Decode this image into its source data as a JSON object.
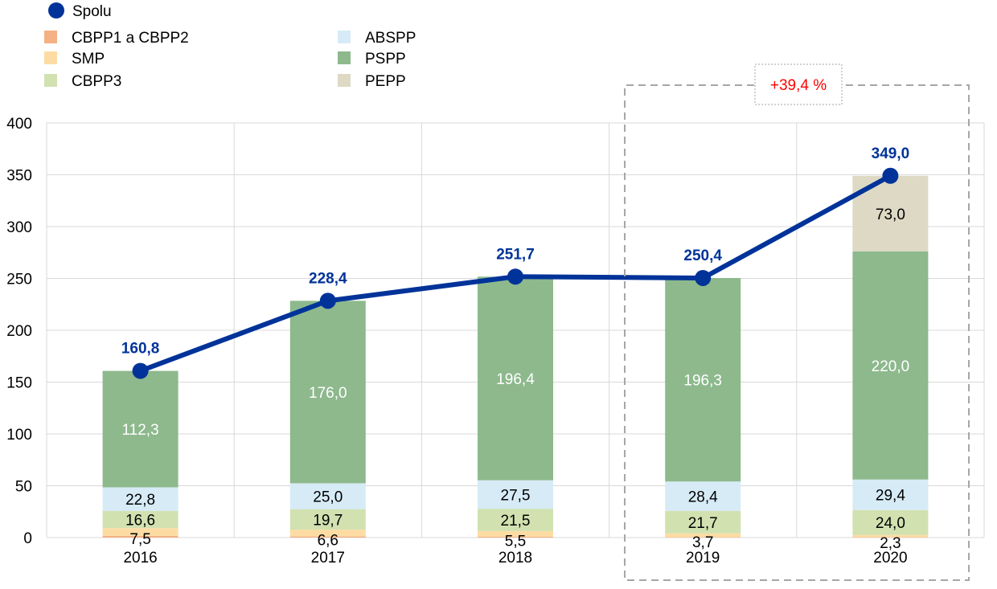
{
  "chart_data": {
    "type": "bar",
    "stacked": true,
    "categories": [
      "2016",
      "2017",
      "2018",
      "2019",
      "2020"
    ],
    "ylim": [
      0,
      400
    ],
    "yticks": [
      0,
      50,
      100,
      150,
      200,
      250,
      300,
      350,
      400
    ],
    "grid": true,
    "legend_placement": "top-left",
    "series": [
      {
        "name": "CBPP1 a CBPP2",
        "color": "#f4b183",
        "values": [
          1.6,
          1.1,
          0.8,
          0.3,
          0.3
        ],
        "labels": [
          "",
          "",
          "",
          "",
          ""
        ]
      },
      {
        "name": "SMP",
        "color": "#fddca4",
        "values": [
          7.5,
          6.6,
          5.5,
          3.7,
          2.3
        ],
        "labels": [
          "7,5",
          "6,6",
          "5,5",
          "3,7",
          "2,3"
        ]
      },
      {
        "name": "CBPP3",
        "color": "#d1e1b0",
        "values": [
          16.6,
          19.7,
          21.5,
          21.7,
          24.0
        ],
        "labels": [
          "16,6",
          "19,7",
          "21,5",
          "21,7",
          "24,0"
        ]
      },
      {
        "name": "ABSPP",
        "color": "#d6ebf6",
        "values": [
          22.8,
          25.0,
          27.5,
          28.4,
          29.4
        ],
        "labels": [
          "22,8",
          "25,0",
          "27,5",
          "28,4",
          "29,4"
        ]
      },
      {
        "name": "PSPP",
        "color": "#8db98d",
        "values": [
          112.3,
          176.0,
          196.4,
          196.3,
          220.0
        ],
        "labels": [
          "112,3",
          "176,0",
          "196,4",
          "196,3",
          "220,0"
        ]
      },
      {
        "name": "PEPP",
        "color": "#ddd9c4",
        "values": [
          0,
          0,
          0,
          0,
          73.0
        ],
        "labels": [
          "",
          "",
          "",
          "",
          "73,0"
        ]
      }
    ],
    "line": {
      "name": "Spolu",
      "color": "#003399",
      "values": [
        160.8,
        228.4,
        251.7,
        250.4,
        349.0
      ],
      "labels": [
        "160,8",
        "228,4",
        "251,7",
        "250,4",
        "349,0"
      ]
    },
    "annotation": {
      "text": "+39,4 %",
      "color": "#ff0000",
      "covers": [
        "2019",
        "2020"
      ]
    }
  }
}
